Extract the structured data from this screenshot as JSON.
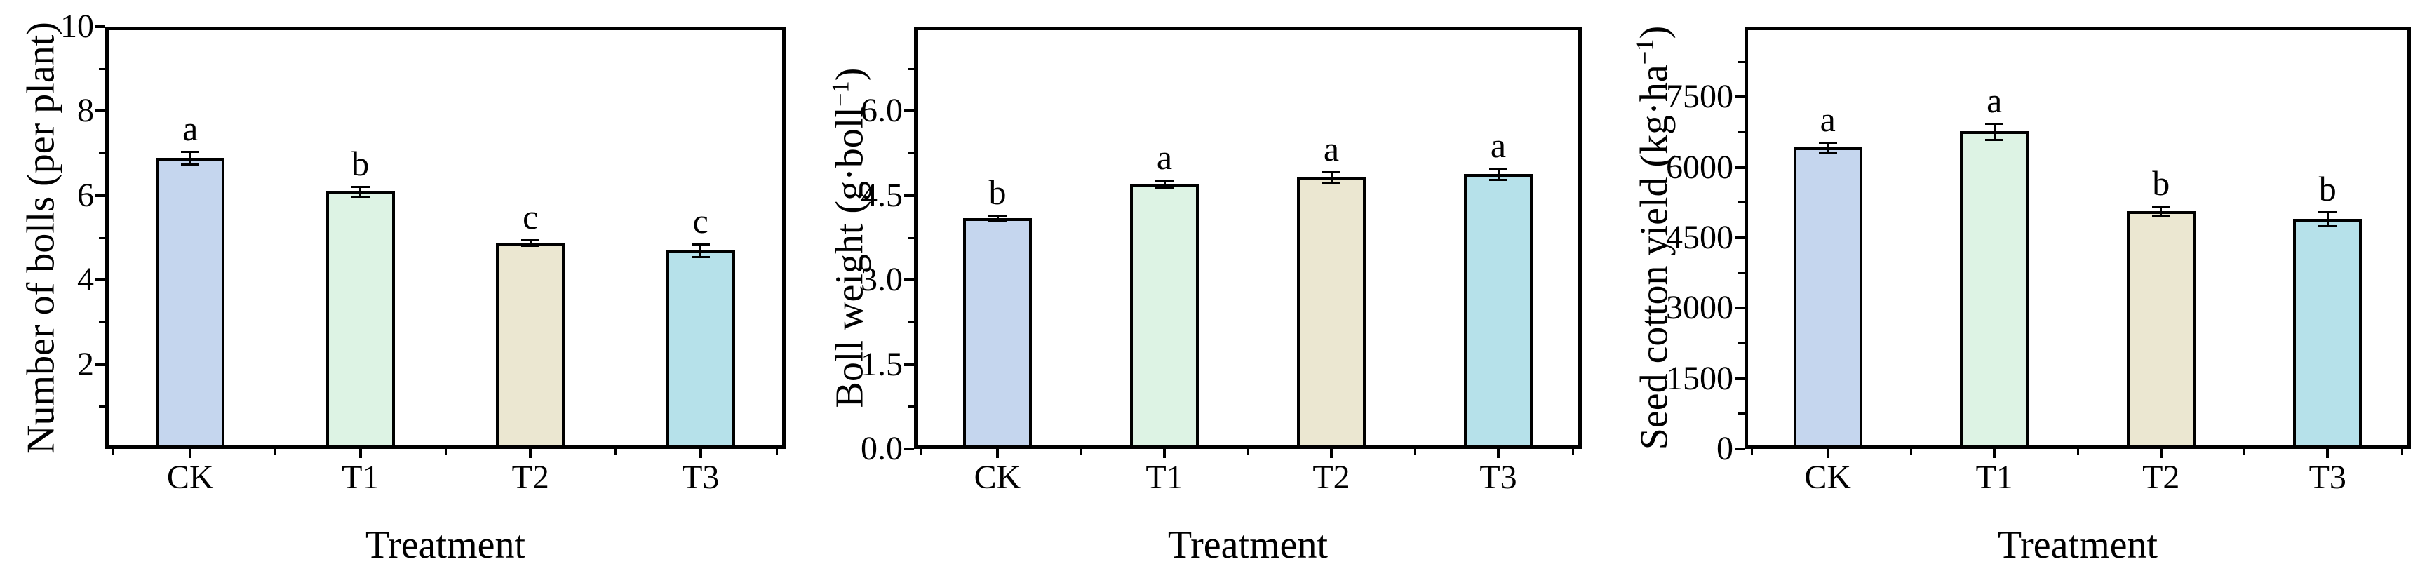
{
  "figure": {
    "background_color": "#ffffff",
    "axis_color": "#000000",
    "text_color": "#000000",
    "panel_count": 3
  },
  "chart_data": [
    {
      "id": "number-of-bolls",
      "type": "bar",
      "title": "",
      "xlabel": "Treatment",
      "ylabel_main": "Number of bolls (per plant",
      "ylabel_sup": "",
      "ylabel_end": ")",
      "categories": [
        "CK",
        "T1",
        "T2",
        "T3"
      ],
      "values": [
        6.9,
        6.1,
        4.88,
        4.7
      ],
      "errors": [
        0.15,
        0.12,
        0.07,
        0.15
      ],
      "sig_letters": [
        "a",
        "b",
        "c",
        "c"
      ],
      "bar_colors": [
        "#c5d6ee",
        "#ddf3e4",
        "#ebe7d1",
        "#b6e1ea"
      ],
      "ylim": [
        0,
        10
      ],
      "ytick_values": [
        2,
        4,
        6,
        8,
        10
      ],
      "ytick_labels": [
        "2",
        "4",
        "6",
        "8",
        "10"
      ],
      "minor_ytick_values": [
        1,
        3,
        5,
        7,
        9
      ],
      "grid": false,
      "legend": null
    },
    {
      "id": "boll-weight",
      "type": "bar",
      "title": "",
      "xlabel": "Treatment",
      "ylabel_main": "Boll weight (g·boll",
      "ylabel_sup": "−1",
      "ylabel_end": ")",
      "categories": [
        "CK",
        "T1",
        "T2",
        "T3"
      ],
      "values": [
        4.1,
        4.7,
        4.82,
        4.88
      ],
      "errors": [
        0.05,
        0.07,
        0.1,
        0.1
      ],
      "sig_letters": [
        "b",
        "a",
        "a",
        "a"
      ],
      "bar_colors": [
        "#c5d6ee",
        "#ddf3e4",
        "#ebe7d1",
        "#b6e1ea"
      ],
      "ylim": [
        0,
        7.5
      ],
      "ytick_values": [
        0,
        1.5,
        3,
        4.5,
        6
      ],
      "ytick_labels": [
        "0.0",
        "1.5",
        "3.0",
        "4.5",
        "6.0"
      ],
      "minor_ytick_values": [
        0.75,
        2.25,
        3.75,
        5.25,
        6.75
      ],
      "grid": false,
      "legend": null
    },
    {
      "id": "seed-cotton-yield",
      "type": "bar",
      "title": "",
      "xlabel": "Treatment",
      "ylabel_main": "Seed cotton yield (kg·ha",
      "ylabel_sup": "−1",
      "ylabel_end": ")",
      "categories": [
        "CK",
        "T1",
        "T2",
        "T3"
      ],
      "values": [
        6430,
        6770,
        5075,
        4910
      ],
      "errors": [
        100,
        170,
        100,
        150
      ],
      "sig_letters": [
        "a",
        "a",
        "b",
        "b"
      ],
      "bar_colors": [
        "#c5d6ee",
        "#ddf3e4",
        "#ebe7d1",
        "#b6e1ea"
      ],
      "ylim": [
        0,
        9000
      ],
      "ytick_values": [
        0,
        1500,
        3000,
        4500,
        6000,
        7500
      ],
      "ytick_labels": [
        "0",
        "1500",
        "3000",
        "4500",
        "6000",
        "7500"
      ],
      "minor_ytick_values": [
        750,
        2250,
        3750,
        5250,
        6750,
        8250
      ],
      "grid": false,
      "legend": null
    }
  ]
}
